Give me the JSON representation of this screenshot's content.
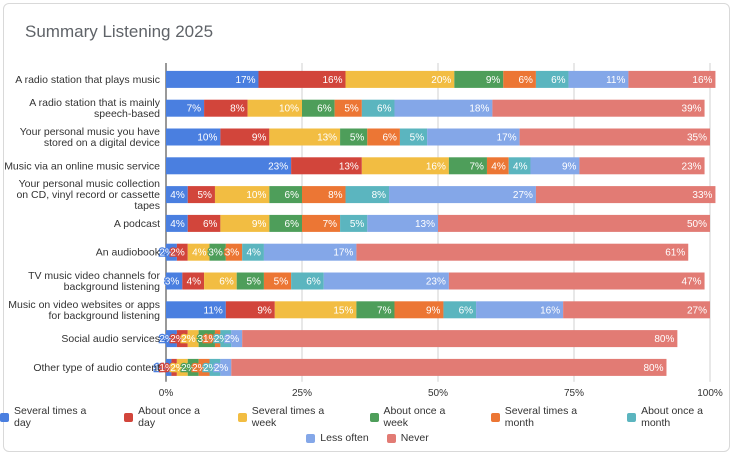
{
  "chart_data": {
    "type": "bar",
    "orientation": "horizontal",
    "stacked": "percent",
    "title": "Summary Listening 2025",
    "xlabel": "",
    "ylabel": "",
    "xlim": [
      0,
      100
    ],
    "x_ticks": [
      "0%",
      "25%",
      "50%",
      "75%",
      "100%"
    ],
    "grid": true,
    "legend_position": "bottom",
    "categories": [
      [
        "A radio station that plays music"
      ],
      [
        "A radio station that is mainly",
        "speech-based"
      ],
      [
        "Your personal music you have",
        "stored on a digital device"
      ],
      [
        "Music via an online music service"
      ],
      [
        "Your personal music collection",
        "on CD, vinyl record or cassette",
        "tapes"
      ],
      [
        "A podcast"
      ],
      [
        "An audiobook"
      ],
      [
        "TV music video channels for",
        "background listening"
      ],
      [
        "Music on video websites or apps",
        "for background listening"
      ],
      [
        "Social audio services"
      ],
      [
        "Other type of audio content"
      ]
    ],
    "series": [
      {
        "name": "Several times a day",
        "color": "#4a7fe0",
        "values": [
          17,
          7,
          10,
          23,
          4,
          4,
          2,
          3,
          11,
          2,
          1
        ]
      },
      {
        "name": "About once a day",
        "color": "#d2453b",
        "values": [
          16,
          8,
          9,
          13,
          5,
          6,
          2,
          4,
          9,
          2,
          1
        ]
      },
      {
        "name": "Several times a week",
        "color": "#f2bd42",
        "values": [
          20,
          10,
          13,
          16,
          10,
          9,
          4,
          6,
          15,
          2,
          2
        ]
      },
      {
        "name": "About once a week",
        "color": "#4e9e5a",
        "values": [
          9,
          6,
          5,
          7,
          6,
          6,
          3,
          5,
          7,
          3,
          2
        ]
      },
      {
        "name": "Several times a month",
        "color": "#ec7634",
        "values": [
          6,
          5,
          6,
          4,
          8,
          7,
          3,
          5,
          9,
          1,
          2
        ]
      },
      {
        "name": "About once a month",
        "color": "#5bb5bf",
        "values": [
          6,
          6,
          5,
          4,
          8,
          5,
          4,
          6,
          6,
          2,
          2
        ]
      },
      {
        "name": "Less often",
        "color": "#84a7e8",
        "values": [
          11,
          18,
          17,
          9,
          27,
          13,
          17,
          23,
          16,
          2,
          2
        ]
      },
      {
        "name": "Never",
        "color": "#e27b74",
        "values": [
          16,
          39,
          35,
          23,
          33,
          50,
          61,
          47,
          27,
          80,
          80
        ]
      }
    ]
  }
}
